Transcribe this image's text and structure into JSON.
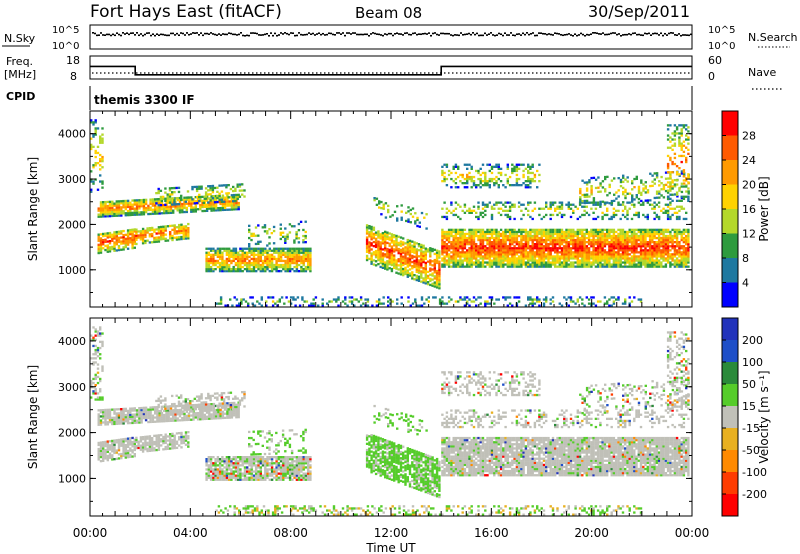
{
  "header": {
    "station": "Fort Hays East (fitACF)",
    "beam": "Beam 08",
    "date": "30/Sep/2011"
  },
  "noise_panel": {
    "left_label": "N.Sky",
    "right_label": "N.Search",
    "ticks_top": "10^5",
    "ticks_bottom": "10^0"
  },
  "freq_panel": {
    "left_label_1": "Freq.",
    "left_label_2": "[MHz]",
    "right_label": "Nave",
    "left_ticks": [
      "18",
      "8"
    ],
    "right_ticks": [
      "60",
      "0"
    ]
  },
  "cpid": {
    "label": "CPID",
    "value": "themis 3300 IF"
  },
  "chart_data": [
    {
      "type": "heatmap",
      "name": "power",
      "ylabel": "Slant Range [km]",
      "ylim": [
        180,
        4500
      ],
      "xlim": [
        0,
        24
      ],
      "yticks": [
        "1000",
        "2000",
        "3000",
        "4000"
      ],
      "xticks": [
        "00:00",
        "04:00",
        "08:00",
        "12:00",
        "16:00",
        "20:00",
        "00:00"
      ],
      "colorbar": {
        "label": "Power [dB]",
        "ticks": [
          "28",
          "24",
          "20",
          "16",
          "12",
          "8",
          "4"
        ],
        "colors": [
          "#ff0000",
          "#ff5a00",
          "#ff9a00",
          "#ffd200",
          "#b4d82a",
          "#2e9b3e",
          "#1e78a0",
          "#0000ff"
        ]
      }
    },
    {
      "type": "heatmap",
      "name": "velocity",
      "ylabel": "Slant Range [km]",
      "ylim": [
        180,
        4500
      ],
      "xlim": [
        0,
        24
      ],
      "yticks": [
        "1000",
        "2000",
        "3000",
        "4000"
      ],
      "xticks": [
        "00:00",
        "04:00",
        "08:00",
        "12:00",
        "16:00",
        "20:00",
        "00:00"
      ],
      "colorbar": {
        "label": "Velocity [m s⁻¹]",
        "ticks": [
          "200",
          "100",
          "50",
          "15",
          "-15",
          "-50",
          "-100",
          "-200"
        ],
        "colors": [
          "#2233bb",
          "#1e4fc8",
          "#2a8a3a",
          "#55cc2a",
          "#c0c0b8",
          "#e8b020",
          "#ff8a00",
          "#ff3c00",
          "#ff0000"
        ]
      }
    }
  ],
  "frequency_series": {
    "x": [
      0,
      1.8,
      1.8,
      14,
      14,
      24
    ],
    "y": [
      14,
      14,
      10,
      10,
      14,
      14
    ]
  },
  "xaxis_label": "Time UT"
}
